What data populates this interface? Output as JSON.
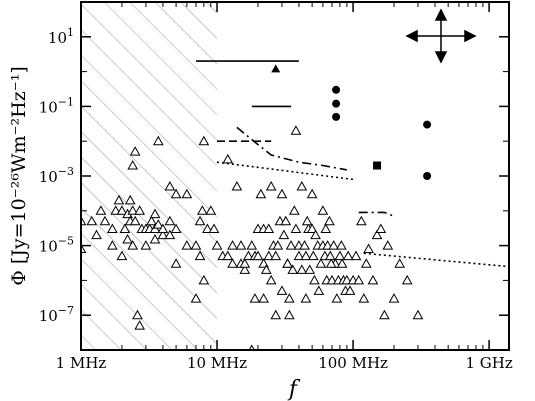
{
  "chart_data": {
    "type": "scatter",
    "title": "",
    "xlabel": "f",
    "ylabel": "Φ [Jy=10⁻²⁶Wm⁻²Hz⁻¹]",
    "x_scale": "log",
    "y_scale": "log",
    "xlim": [
      1000000,
      1400000000
    ],
    "ylim": [
      1e-08,
      100
    ],
    "x_ticks": [
      {
        "value": 1000000,
        "label": "1 MHz"
      },
      {
        "value": 10000000,
        "label": "10 MHz"
      },
      {
        "value": 100000000,
        "label": "100 MHz"
      },
      {
        "value": 1000000000,
        "label": "1 GHz"
      }
    ],
    "y_ticks": [
      {
        "value": 10,
        "base": "10",
        "exp": "1"
      },
      {
        "value": 0.1,
        "base": "10",
        "exp": "−1"
      },
      {
        "value": 0.001,
        "base": "10",
        "exp": "−3"
      },
      {
        "value": 1e-05,
        "base": "10",
        "exp": "−5"
      },
      {
        "value": 1e-07,
        "base": "10",
        "exp": "−7"
      }
    ],
    "shaded_region": {
      "x_from": 1000000,
      "x_to": 10000000,
      "pattern": "diagonal hatch"
    },
    "grid": false,
    "series": [
      {
        "marker": "open-triangle",
        "points": [
          [
            1000000,
            8e-06
          ],
          [
            1000000,
            5e-05
          ],
          [
            1200000,
            5e-05
          ],
          [
            1300000,
            2e-05
          ],
          [
            1400000,
            0.0001
          ],
          [
            1500000,
            5e-05
          ],
          [
            1700000,
            3e-05
          ],
          [
            1700000,
            1e-05
          ],
          [
            1800000,
            0.0001
          ],
          [
            1900000,
            0.0002
          ],
          [
            2000000,
            0.0001
          ],
          [
            2000000,
            5e-06
          ],
          [
            2100000,
            3e-05
          ],
          [
            2200000,
            8e-05
          ],
          [
            2200000,
            1.5e-05
          ],
          [
            2300000,
            0.0002
          ],
          [
            2300000,
            5e-05
          ],
          [
            2400000,
            0.002
          ],
          [
            2400000,
            0.0001
          ],
          [
            2400000,
            1e-05
          ],
          [
            2500000,
            5e-05
          ],
          [
            2500000,
            0.005
          ],
          [
            2600000,
            1e-07
          ],
          [
            2700000,
            5e-08
          ],
          [
            2700000,
            0.0001
          ],
          [
            2800000,
            3e-05
          ],
          [
            3000000,
            3e-05
          ],
          [
            3000000,
            1e-05
          ],
          [
            3200000,
            3e-05
          ],
          [
            3300000,
            5e-05
          ],
          [
            3500000,
            3e-05
          ],
          [
            3500000,
            8e-05
          ],
          [
            3500000,
            1.5e-05
          ],
          [
            3700000,
            4e-05
          ],
          [
            3700000,
            0.01
          ],
          [
            4000000,
            2e-05
          ],
          [
            4000000,
            3e-05
          ],
          [
            4500000,
            2e-05
          ],
          [
            4500000,
            0.0005
          ],
          [
            4500000,
            5e-05
          ],
          [
            5000000,
            3e-06
          ],
          [
            5000000,
            0.0003
          ],
          [
            5000000,
            3e-05
          ],
          [
            6000000,
            1e-05
          ],
          [
            6000000,
            0.0003
          ],
          [
            7000000,
            1e-05
          ],
          [
            7000000,
            3e-07
          ],
          [
            7500000,
            5e-05
          ],
          [
            7500000,
            5e-06
          ],
          [
            7800000,
            0.0001
          ],
          [
            8000000,
            0.01
          ],
          [
            8000000,
            1e-06
          ],
          [
            8500000,
            3e-05
          ],
          [
            9000000,
            0.0001
          ],
          [
            9500000,
            3e-05
          ],
          [
            10000000,
            1e-05
          ],
          [
            11000000,
            5e-06
          ],
          [
            12000000,
            0.003
          ],
          [
            12000000,
            5e-06
          ],
          [
            13000000,
            1e-05
          ],
          [
            13000000,
            3e-06
          ],
          [
            14000000,
            0.0005
          ],
          [
            15000000,
            3e-06
          ],
          [
            15000000,
            1e-05
          ],
          [
            16000000,
            2e-06
          ],
          [
            17000000,
            5e-06
          ],
          [
            18000000,
            1e-05
          ],
          [
            18000000,
            1e-08
          ],
          [
            19000000,
            5e-06
          ],
          [
            20000000,
            3e-05
          ],
          [
            20000000,
            5e-06
          ],
          [
            21000000,
            0.0003
          ],
          [
            22000000,
            3e-06
          ],
          [
            22000000,
            3e-05
          ],
          [
            23000000,
            2e-06
          ],
          [
            24000000,
            5e-06
          ],
          [
            25000000,
            0.0005
          ],
          [
            25000000,
            1e-06
          ],
          [
            26000000,
            1e-05
          ],
          [
            27000000,
            5e-06
          ],
          [
            28000000,
            1e-05
          ],
          [
            29000000,
            5e-05
          ],
          [
            30000000,
            0.0003
          ],
          [
            30000000,
            5e-07
          ],
          [
            31000000,
            2e-05
          ],
          [
            32000000,
            5e-05
          ],
          [
            33000000,
            3e-06
          ],
          [
            34000000,
            3e-07
          ],
          [
            34000000,
            1e-07
          ],
          [
            35000000,
            1e-05
          ],
          [
            36000000,
            2e-06
          ],
          [
            37000000,
            0.0001
          ],
          [
            38000000,
            3e-05
          ],
          [
            38000000,
            0.02
          ],
          [
            40000000,
            1e-05
          ],
          [
            40000000,
            5e-06
          ],
          [
            42000000,
            0.0005
          ],
          [
            42000000,
            2e-06
          ],
          [
            44000000,
            1e-05
          ],
          [
            45000000,
            3e-07
          ],
          [
            45000000,
            5e-06
          ],
          [
            47000000,
            3e-05
          ],
          [
            48000000,
            2e-06
          ],
          [
            50000000,
            0.0003
          ],
          [
            50000000,
            3e-05
          ],
          [
            51000000,
            5e-06
          ],
          [
            53000000,
            2e-05
          ],
          [
            55000000,
            1e-05
          ],
          [
            56000000,
            5e-07
          ],
          [
            58000000,
            3e-06
          ],
          [
            60000000,
            1e-05
          ],
          [
            60000000,
            0.0001
          ],
          [
            62000000,
            5e-06
          ],
          [
            64000000,
            1e-06
          ],
          [
            65000000,
            1e-05
          ],
          [
            67000000,
            5e-05
          ],
          [
            68000000,
            5e-06
          ],
          [
            70000000,
            1e-06
          ],
          [
            72000000,
            1e-05
          ],
          [
            74000000,
            3e-06
          ],
          [
            76000000,
            3e-07
          ],
          [
            78000000,
            1e-06
          ],
          [
            80000000,
            5e-06
          ],
          [
            82000000,
            1e-05
          ],
          [
            85000000,
            1e-06
          ],
          [
            88000000,
            5e-07
          ],
          [
            90000000,
            1e-06
          ],
          [
            95000000,
            5e-07
          ],
          [
            100000000,
            1e-06
          ],
          [
            105000000,
            5e-06
          ],
          [
            110000000,
            1e-06
          ],
          [
            115000000,
            5e-05
          ],
          [
            120000000,
            3e-07
          ],
          [
            125000000,
            3e-06
          ],
          [
            130000000,
            8e-06
          ],
          [
            140000000,
            1e-06
          ],
          [
            150000000,
            2e-05
          ],
          [
            160000000,
            3e-05
          ],
          [
            170000000,
            1e-07
          ],
          [
            180000000,
            1e-05
          ],
          [
            200000000,
            3e-07
          ],
          [
            220000000,
            3e-06
          ],
          [
            250000000,
            1e-06
          ],
          [
            300000000,
            1e-07
          ],
          [
            16000000,
            3e-06
          ],
          [
            27000000,
            1e-07
          ],
          [
            24000000,
            3e-05
          ],
          [
            19000000,
            3e-07
          ],
          [
            22000000,
            3e-07
          ],
          [
            33000000,
            3e-06
          ],
          [
            46000000,
            5e-05
          ],
          [
            52000000,
            1e-06
          ],
          [
            63000000,
            3e-05
          ],
          [
            69000000,
            3e-06
          ],
          [
            83000000,
            3e-06
          ],
          [
            92000000,
            5e-06
          ]
        ]
      },
      {
        "marker": "filled-circle",
        "points": [
          [
            75000000,
            0.3
          ],
          [
            75000000,
            0.12
          ],
          [
            75000000,
            0.05
          ],
          [
            350000000,
            0.03
          ],
          [
            350000000,
            0.001
          ]
        ]
      },
      {
        "marker": "filled-square",
        "points": [
          [
            150000000,
            0.002
          ]
        ]
      },
      {
        "marker": "filled-triangle",
        "points": [
          [
            27000000,
            1.2
          ]
        ]
      }
    ],
    "lines": [
      {
        "style": "solid",
        "points": [
          [
            7000000,
            2
          ],
          [
            40000000,
            2
          ]
        ]
      },
      {
        "style": "solid",
        "points": [
          [
            18000000,
            0.1
          ],
          [
            35000000,
            0.1
          ]
        ]
      },
      {
        "style": "dashed",
        "points": [
          [
            10000000,
            0.01
          ],
          [
            25000000,
            0.01
          ]
        ]
      },
      {
        "style": "dash-dot",
        "points": [
          [
            14000000,
            0.025
          ],
          [
            20000000,
            0.008
          ],
          [
            25000000,
            0.004
          ],
          [
            40000000,
            0.0025
          ],
          [
            60000000,
            0.002
          ],
          [
            90000000,
            0.0015
          ]
        ]
      },
      {
        "style": "dotted",
        "points": [
          [
            10000000,
            0.0025
          ],
          [
            100000000,
            0.0008
          ]
        ]
      },
      {
        "style": "dotted",
        "points": [
          [
            120000000,
            6e-06
          ],
          [
            1400000000,
            2.5e-06
          ]
        ]
      },
      {
        "style": "dash-dot",
        "points": [
          [
            110000000,
            9e-05
          ],
          [
            170000000,
            9e-05
          ],
          [
            200000000,
            7e-05
          ]
        ]
      }
    ],
    "legend_icon": "four-way arrows, top-right"
  }
}
